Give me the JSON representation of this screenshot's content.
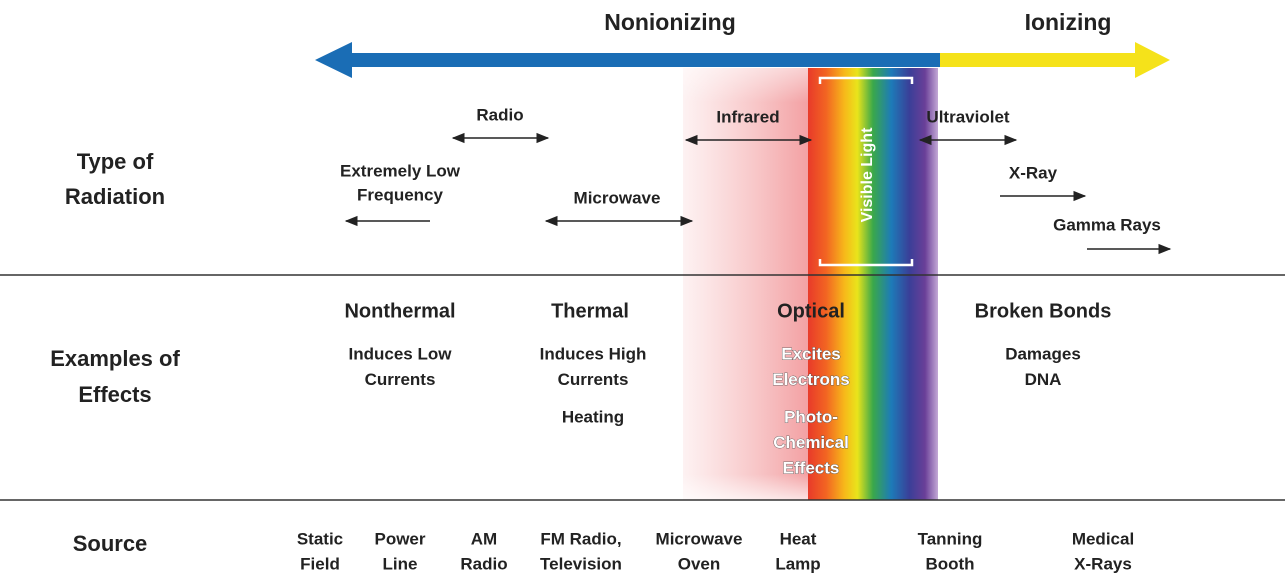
{
  "spectrum": {
    "nonionizing": "Nonionizing",
    "ionizing": "Ionizing"
  },
  "row_labels": [
    [
      "Type of",
      "Radiation"
    ],
    [
      "Examples of",
      "Effects"
    ],
    [
      "Source"
    ]
  ],
  "types": [
    {
      "label": [
        "Extremely Low",
        "Frequency"
      ]
    },
    {
      "label": [
        "Radio"
      ]
    },
    {
      "label": [
        "Microwave"
      ]
    },
    {
      "label": [
        "Infrared"
      ]
    },
    {
      "label": [
        "Visible Light"
      ]
    },
    {
      "label": [
        "Ultraviolet"
      ]
    },
    {
      "label": [
        "X-Ray"
      ]
    },
    {
      "label": [
        "Gamma Rays"
      ]
    }
  ],
  "effects": [
    {
      "title": "Nonthermal",
      "details": [
        [
          "Induces Low",
          "Currents"
        ]
      ]
    },
    {
      "title": "Thermal",
      "details": [
        [
          "Induces High",
          "Currents"
        ],
        [
          "Heating"
        ]
      ]
    },
    {
      "title": "Optical",
      "details": [
        [
          "Excites",
          "Electrons"
        ],
        [
          "Photo-",
          "Chemical",
          "Effects"
        ]
      ]
    },
    {
      "title": "Broken Bonds",
      "details": [
        [
          "Damages",
          "DNA"
        ]
      ]
    }
  ],
  "sources": [
    [
      "Static",
      "Field"
    ],
    [
      "Power",
      "Line"
    ],
    [
      "AM",
      "Radio"
    ],
    [
      "FM Radio,",
      "Television"
    ],
    [
      "Microwave",
      "Oven"
    ],
    [
      "Heat",
      "Lamp"
    ],
    [
      "Tanning",
      "Booth"
    ],
    [
      "Medical",
      "X-Rays"
    ]
  ]
}
